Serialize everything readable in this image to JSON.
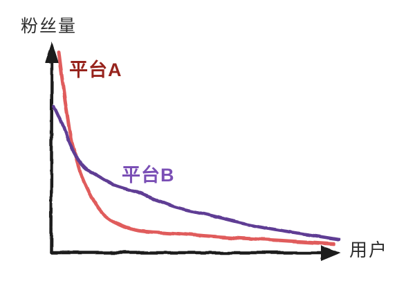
{
  "chart_data": {
    "type": "line",
    "title": "",
    "xlabel": "用户",
    "ylabel": "粉丝量",
    "x_range": [
      0,
      100
    ],
    "y_range": [
      0,
      100
    ],
    "grid": false,
    "legend_position": "inline-labels",
    "style": "hand-drawn axes with arrowheads, no tick marks or tick labels",
    "axis_color": "#1a1a1a",
    "series": [
      {
        "name": "平台A",
        "label_color": "#97231c",
        "line_color": "#e05c5c",
        "points": [
          [
            2.4,
            100
          ],
          [
            4.1,
            81
          ],
          [
            6.0,
            62
          ],
          [
            7.2,
            53
          ],
          [
            8.4,
            48
          ],
          [
            10.8,
            37
          ],
          [
            14.5,
            26
          ],
          [
            18.1,
            19
          ],
          [
            22.9,
            14.5
          ],
          [
            30.1,
            11
          ],
          [
            42.2,
            9.7
          ],
          [
            54.2,
            8.3
          ],
          [
            66.3,
            7.2
          ],
          [
            78.3,
            6.2
          ],
          [
            98.3,
            4.5
          ]
        ]
      },
      {
        "name": "平台B",
        "label_color": "#7a4fb5",
        "line_color": "#5e3c94",
        "points": [
          [
            0.7,
            73
          ],
          [
            3.6,
            64
          ],
          [
            6.0,
            55
          ],
          [
            8.4,
            48
          ],
          [
            12.0,
            42
          ],
          [
            15.7,
            38.6
          ],
          [
            21.7,
            33.8
          ],
          [
            30.1,
            30
          ],
          [
            42.2,
            23.1
          ],
          [
            54.2,
            19
          ],
          [
            66.3,
            14.8
          ],
          [
            78.3,
            11.4
          ],
          [
            89.2,
            9.0
          ],
          [
            100,
            6.6
          ]
        ]
      }
    ]
  }
}
